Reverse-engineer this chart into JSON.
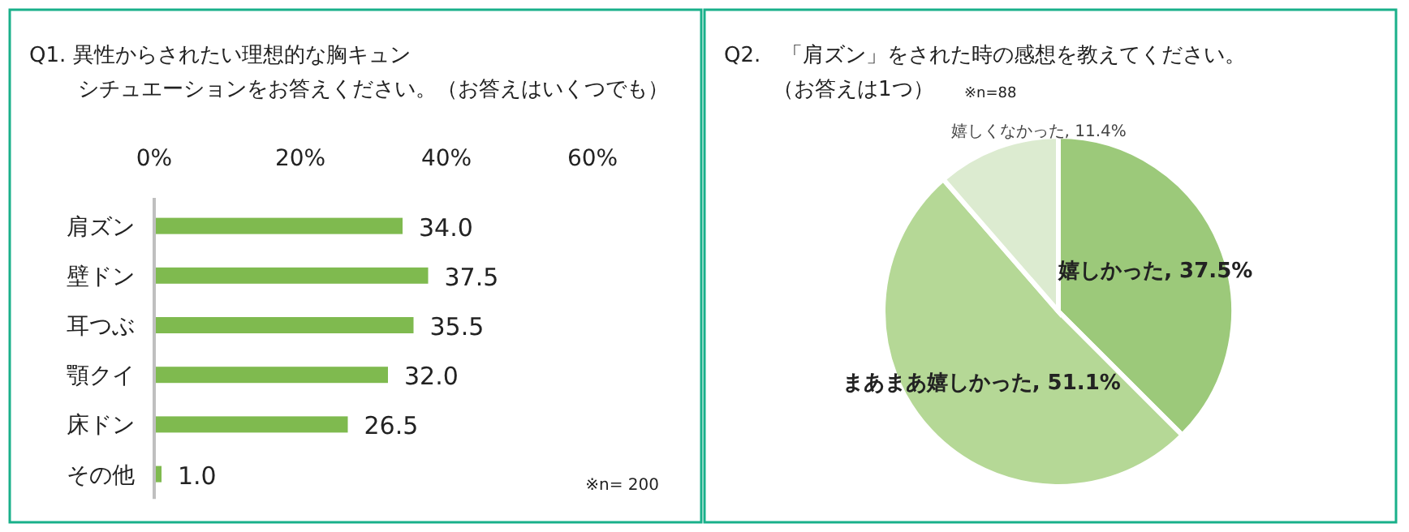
{
  "chart_data": [
    {
      "type": "bar",
      "orientation": "horizontal",
      "title": "Q1. 異性からされたい理想的な胸キュンシチュエーションをお答えください。（お答えはいくつでも）",
      "categories": [
        "肩ズン",
        "壁ドン",
        "耳つぶ",
        "顎クイ",
        "床ドン",
        "その他"
      ],
      "values": [
        34.0,
        37.5,
        35.5,
        32.0,
        26.5,
        1.0
      ],
      "value_labels": [
        "34.0",
        "37.5",
        "35.5",
        "32.0",
        "26.5",
        "1.0"
      ],
      "color": "#7fba4f",
      "xlim": [
        0,
        60
      ],
      "xticks": [
        {
          "value": 0,
          "label": "0%"
        },
        {
          "value": 20,
          "label": "20%"
        },
        {
          "value": 40,
          "label": "40%"
        },
        {
          "value": 60,
          "label": "60%"
        }
      ],
      "annotations": [
        "※n= 200"
      ]
    },
    {
      "type": "pie",
      "title": "Q2.　「肩ズン」をされた時の感想を教えてください。（お答えは1つ）",
      "categories": [
        "嬉しかった",
        "まあまあ嬉しかった",
        "嬉しくなかった"
      ],
      "values": [
        37.5,
        51.1,
        11.4
      ],
      "value_labels": [
        "37.5%",
        "51.1%",
        "11.4%"
      ],
      "colors": [
        "#9cc97a",
        "#b5d896",
        "#dcebd0"
      ],
      "annotations": [
        "※n=88"
      ]
    }
  ]
}
